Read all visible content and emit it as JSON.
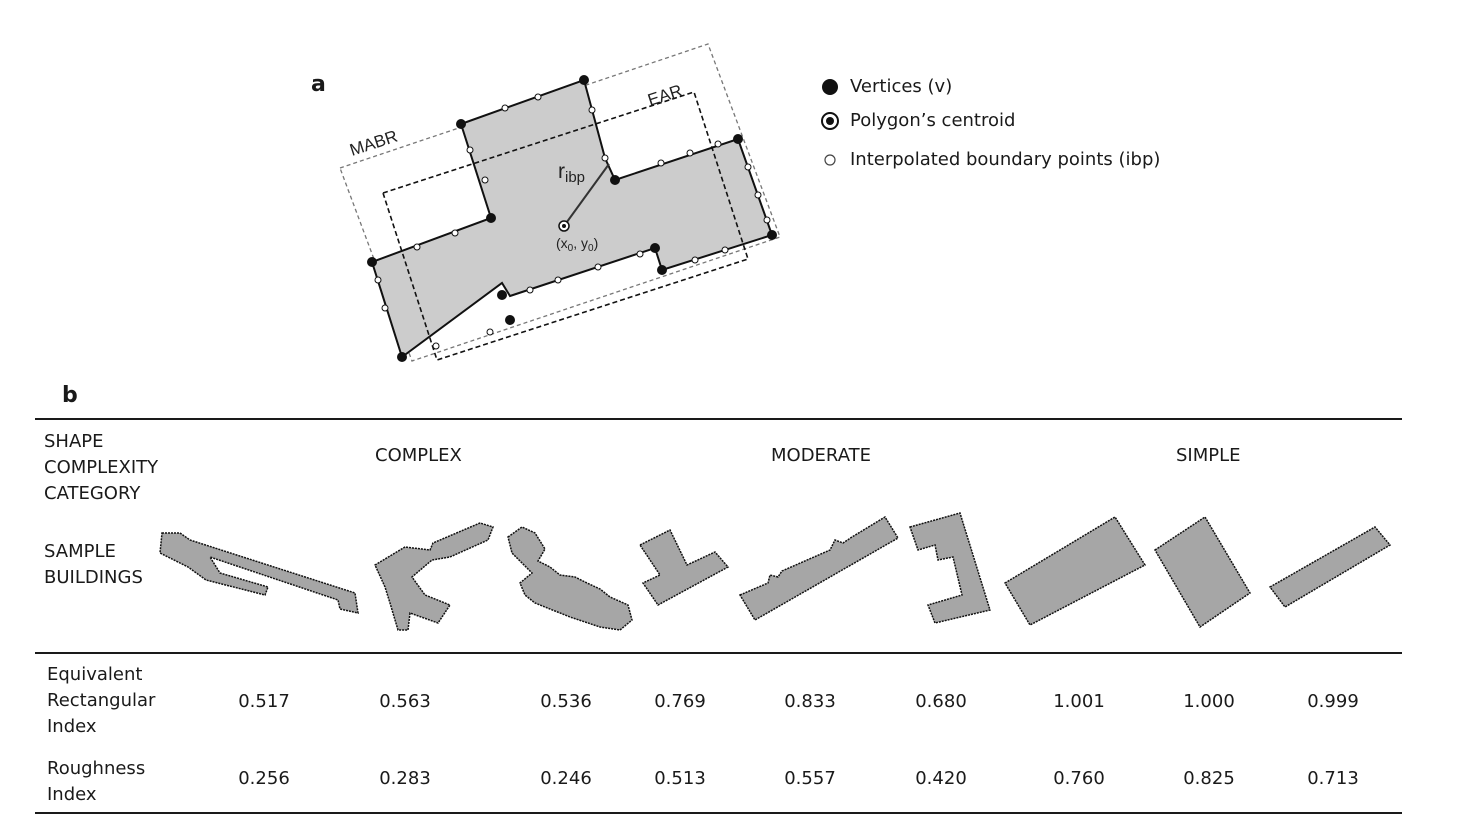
{
  "panel_a": {
    "label": "a",
    "labels": {
      "mabr": "MABR",
      "ear": "EAR",
      "radius_main": "r",
      "radius_sub": "ibp",
      "centroid_text": "(x",
      "centroid_x_sub": "0",
      "centroid_mid": ", y",
      "centroid_y_sub": "0",
      "centroid_close": ")"
    },
    "legend": [
      {
        "label": "Vertices (v)",
        "icon": "filled-dot-icon"
      },
      {
        "label": "Polygon’s centroid",
        "icon": "centroid-dot-icon"
      },
      {
        "label": "Interpolated boundary points (ibp)",
        "icon": "hollow-dot-icon"
      }
    ]
  },
  "panel_b": {
    "label": "b",
    "header_label_lines": [
      "SHAPE",
      "COMPLEXITY",
      "CATEGORY"
    ],
    "categories": [
      "COMPLEX",
      "MODERATE",
      "SIMPLE"
    ],
    "sample_label_lines": [
      "SAMPLE",
      "BUILDINGS"
    ],
    "rows": [
      {
        "label_lines": [
          "Equivalent",
          "Rectangular",
          "Index"
        ],
        "values": [
          "0.517",
          "0.563",
          "0.536",
          "0.769",
          "0.833",
          "0.680",
          "1.001",
          "1.000",
          "0.999"
        ]
      },
      {
        "label_lines": [
          "Roughness",
          "Index"
        ],
        "values": [
          "0.256",
          "0.283",
          "0.246",
          "0.513",
          "0.557",
          "0.420",
          "0.760",
          "0.825",
          "0.713"
        ]
      }
    ]
  },
  "colors": {
    "polygon_fill": "#cccccc",
    "building_fill": "#a6a6a6",
    "stroke": "#111111"
  }
}
